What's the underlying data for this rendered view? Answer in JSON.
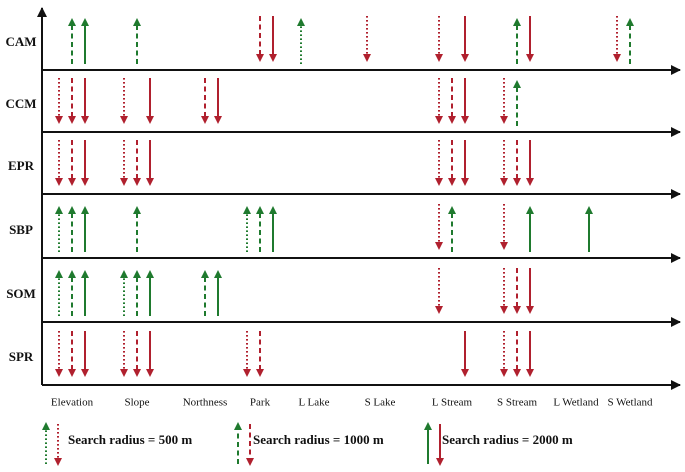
{
  "rows": [
    "CAM",
    "CCM",
    "EPR",
    "SBP",
    "SOM",
    "SPR"
  ],
  "columns": [
    "Elevation",
    "Slope",
    "Northness",
    "Park",
    "L Lake",
    "S Lake",
    "L Stream",
    "S Stream",
    "L Wetland",
    "S Wetland"
  ],
  "colors": {
    "up": "#1f7a2e",
    "down": "#b0202e",
    "axis": "#111111"
  },
  "radius_styles": {
    "500": "dotted",
    "1000": "dashed",
    "2000": "solid"
  },
  "legend": [
    {
      "radius": "500",
      "label": "Search radius = 500 m"
    },
    {
      "radius": "1000",
      "label": "Search radius = 1000 m"
    },
    {
      "radius": "2000",
      "label": "Search radius = 2000 m"
    }
  ],
  "effects": [
    {
      "row": "CAM",
      "column": "Elevation",
      "radius": "1000",
      "direction": "up"
    },
    {
      "row": "CAM",
      "column": "Elevation",
      "radius": "2000",
      "direction": "up"
    },
    {
      "row": "CAM",
      "column": "Slope",
      "radius": "1000",
      "direction": "up"
    },
    {
      "row": "CAM",
      "column": "Park",
      "radius": "1000",
      "direction": "down"
    },
    {
      "row": "CAM",
      "column": "Park",
      "radius": "2000",
      "direction": "down"
    },
    {
      "row": "CAM",
      "column": "L Lake",
      "radius": "500",
      "direction": "up"
    },
    {
      "row": "CAM",
      "column": "S Lake",
      "radius": "500",
      "direction": "down"
    },
    {
      "row": "CAM",
      "column": "L Stream",
      "radius": "500",
      "direction": "down"
    },
    {
      "row": "CAM",
      "column": "L Stream",
      "radius": "2000",
      "direction": "down"
    },
    {
      "row": "CAM",
      "column": "S Stream",
      "radius": "1000",
      "direction": "up"
    },
    {
      "row": "CAM",
      "column": "S Stream",
      "radius": "2000",
      "direction": "down"
    },
    {
      "row": "CAM",
      "column": "S Wetland",
      "radius": "500",
      "direction": "down"
    },
    {
      "row": "CAM",
      "column": "S Wetland",
      "radius": "1000",
      "direction": "up"
    },
    {
      "row": "CCM",
      "column": "Elevation",
      "radius": "500",
      "direction": "down"
    },
    {
      "row": "CCM",
      "column": "Elevation",
      "radius": "1000",
      "direction": "down"
    },
    {
      "row": "CCM",
      "column": "Elevation",
      "radius": "2000",
      "direction": "down"
    },
    {
      "row": "CCM",
      "column": "Slope",
      "radius": "500",
      "direction": "down"
    },
    {
      "row": "CCM",
      "column": "Slope",
      "radius": "2000",
      "direction": "down"
    },
    {
      "row": "CCM",
      "column": "Northness",
      "radius": "1000",
      "direction": "down"
    },
    {
      "row": "CCM",
      "column": "Northness",
      "radius": "2000",
      "direction": "down"
    },
    {
      "row": "CCM",
      "column": "L Stream",
      "radius": "500",
      "direction": "down"
    },
    {
      "row": "CCM",
      "column": "L Stream",
      "radius": "1000",
      "direction": "down"
    },
    {
      "row": "CCM",
      "column": "L Stream",
      "radius": "2000",
      "direction": "down"
    },
    {
      "row": "CCM",
      "column": "S Stream",
      "radius": "500",
      "direction": "down"
    },
    {
      "row": "CCM",
      "column": "S Stream",
      "radius": "1000",
      "direction": "up"
    },
    {
      "row": "EPR",
      "column": "Elevation",
      "radius": "500",
      "direction": "down"
    },
    {
      "row": "EPR",
      "column": "Elevation",
      "radius": "1000",
      "direction": "down"
    },
    {
      "row": "EPR",
      "column": "Elevation",
      "radius": "2000",
      "direction": "down"
    },
    {
      "row": "EPR",
      "column": "Slope",
      "radius": "500",
      "direction": "down"
    },
    {
      "row": "EPR",
      "column": "Slope",
      "radius": "1000",
      "direction": "down"
    },
    {
      "row": "EPR",
      "column": "Slope",
      "radius": "2000",
      "direction": "down"
    },
    {
      "row": "EPR",
      "column": "L Stream",
      "radius": "500",
      "direction": "down"
    },
    {
      "row": "EPR",
      "column": "L Stream",
      "radius": "1000",
      "direction": "down"
    },
    {
      "row": "EPR",
      "column": "L Stream",
      "radius": "2000",
      "direction": "down"
    },
    {
      "row": "EPR",
      "column": "S Stream",
      "radius": "500",
      "direction": "down"
    },
    {
      "row": "EPR",
      "column": "S Stream",
      "radius": "1000",
      "direction": "down"
    },
    {
      "row": "EPR",
      "column": "S Stream",
      "radius": "2000",
      "direction": "down"
    },
    {
      "row": "SBP",
      "column": "Elevation",
      "radius": "500",
      "direction": "up"
    },
    {
      "row": "SBP",
      "column": "Elevation",
      "radius": "1000",
      "direction": "up"
    },
    {
      "row": "SBP",
      "column": "Elevation",
      "radius": "2000",
      "direction": "up"
    },
    {
      "row": "SBP",
      "column": "Slope",
      "radius": "1000",
      "direction": "up"
    },
    {
      "row": "SBP",
      "column": "Park",
      "radius": "500",
      "direction": "up"
    },
    {
      "row": "SBP",
      "column": "Park",
      "radius": "1000",
      "direction": "up"
    },
    {
      "row": "SBP",
      "column": "Park",
      "radius": "2000",
      "direction": "up"
    },
    {
      "row": "SBP",
      "column": "L Stream",
      "radius": "500",
      "direction": "down"
    },
    {
      "row": "SBP",
      "column": "L Stream",
      "radius": "1000",
      "direction": "up"
    },
    {
      "row": "SBP",
      "column": "S Stream",
      "radius": "500",
      "direction": "down"
    },
    {
      "row": "SBP",
      "column": "S Stream",
      "radius": "2000",
      "direction": "up"
    },
    {
      "row": "SBP",
      "column": "L Wetland",
      "radius": "2000",
      "direction": "up"
    },
    {
      "row": "SOM",
      "column": "Elevation",
      "radius": "500",
      "direction": "up"
    },
    {
      "row": "SOM",
      "column": "Elevation",
      "radius": "1000",
      "direction": "up"
    },
    {
      "row": "SOM",
      "column": "Elevation",
      "radius": "2000",
      "direction": "up"
    },
    {
      "row": "SOM",
      "column": "Slope",
      "radius": "500",
      "direction": "up"
    },
    {
      "row": "SOM",
      "column": "Slope",
      "radius": "1000",
      "direction": "up"
    },
    {
      "row": "SOM",
      "column": "Slope",
      "radius": "2000",
      "direction": "up"
    },
    {
      "row": "SOM",
      "column": "Northness",
      "radius": "1000",
      "direction": "up"
    },
    {
      "row": "SOM",
      "column": "Northness",
      "radius": "2000",
      "direction": "up"
    },
    {
      "row": "SOM",
      "column": "L Stream",
      "radius": "500",
      "direction": "down"
    },
    {
      "row": "SOM",
      "column": "S Stream",
      "radius": "500",
      "direction": "down"
    },
    {
      "row": "SOM",
      "column": "S Stream",
      "radius": "1000",
      "direction": "down"
    },
    {
      "row": "SOM",
      "column": "S Stream",
      "radius": "2000",
      "direction": "down"
    },
    {
      "row": "SPR",
      "column": "Elevation",
      "radius": "500",
      "direction": "down"
    },
    {
      "row": "SPR",
      "column": "Elevation",
      "radius": "1000",
      "direction": "down"
    },
    {
      "row": "SPR",
      "column": "Elevation",
      "radius": "2000",
      "direction": "down"
    },
    {
      "row": "SPR",
      "column": "Slope",
      "radius": "500",
      "direction": "down"
    },
    {
      "row": "SPR",
      "column": "Slope",
      "radius": "1000",
      "direction": "down"
    },
    {
      "row": "SPR",
      "column": "Slope",
      "radius": "2000",
      "direction": "down"
    },
    {
      "row": "SPR",
      "column": "Park",
      "radius": "500",
      "direction": "down"
    },
    {
      "row": "SPR",
      "column": "Park",
      "radius": "1000",
      "direction": "down"
    },
    {
      "row": "SPR",
      "column": "L Stream",
      "radius": "2000",
      "direction": "down"
    },
    {
      "row": "SPR",
      "column": "S Stream",
      "radius": "500",
      "direction": "down"
    },
    {
      "row": "SPR",
      "column": "S Stream",
      "radius": "1000",
      "direction": "down"
    },
    {
      "row": "SPR",
      "column": "S Stream",
      "radius": "2000",
      "direction": "down"
    }
  ]
}
